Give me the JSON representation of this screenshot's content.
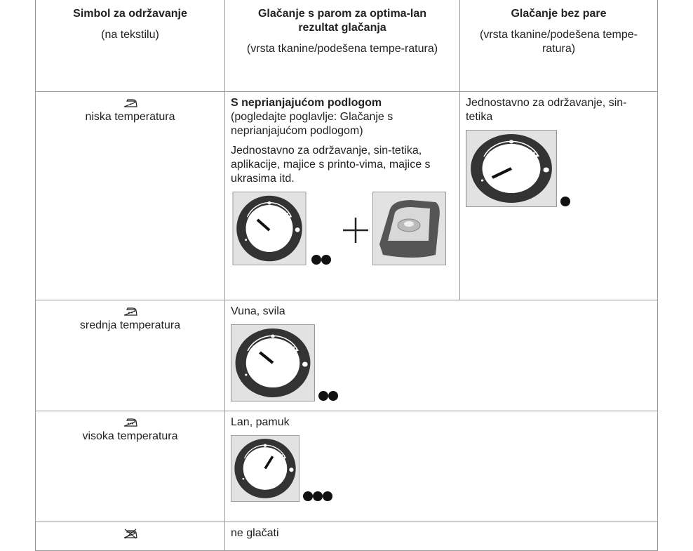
{
  "table": {
    "header": [
      {
        "title": "Simbol za održavanje",
        "note": "(na tekstilu)"
      },
      {
        "title": "Glačanje s parom za optima-lan rezultat glačanja",
        "note": "(vrsta tkanine/podešena tempe-ratura)"
      },
      {
        "title": "Glačanje bez pare",
        "note": "(vrsta tkanine/podešena tempe-ratura)"
      }
    ],
    "rows": [
      {
        "symbol_label": "niska temperatura",
        "steam_heading": "S neprianjajućom podlogom",
        "steam_note": "(pogledajte poglavlje: Glačanje s neprianjajućom podlogom)",
        "steam_text": "Jednostavno za održavanje, sin-tetika, aplikacije, majice s printo-vima, majice s ukrasima itd.",
        "no_steam_text": "Jednostavno za održavanje, sin-tetika"
      },
      {
        "symbol_label": "srednja temperatura",
        "text": "Vuna, svila"
      },
      {
        "symbol_label": "visoka temperatura",
        "text": "Lan, pamuk"
      },
      {
        "text": "ne glačati"
      }
    ]
  }
}
